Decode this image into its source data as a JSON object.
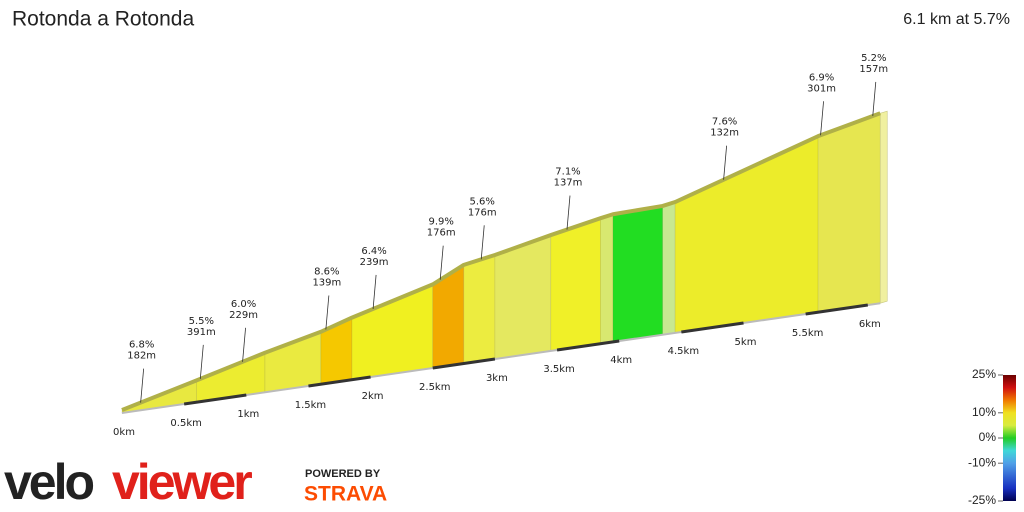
{
  "chart_data": {
    "type": "elevation-profile",
    "title": "Rotonda a Rotonda",
    "subtitle": "6.1 km at 5.7%",
    "distance": [
      0,
      0.6,
      1.15,
      1.6,
      1.85,
      2.5,
      2.75,
      3.0,
      3.45,
      3.85,
      3.95,
      4.35,
      4.45,
      5.6,
      6.1
    ],
    "elevation": [
      0,
      35,
      68,
      92,
      110,
      150,
      178,
      188,
      210,
      228,
      232,
      234,
      238,
      322,
      348
    ],
    "segment_colors": [
      "#e8e840",
      "#ecec30",
      "#eaea40",
      "#f5c800",
      "#f0f020",
      "#f2a900",
      "#ecec40",
      "#e4e860",
      "#f0f028",
      "#d8e870",
      "#22dd22",
      "#c8e890",
      "#ecec2a",
      "#e6e650"
    ],
    "xticks": [
      {
        "value": 0,
        "label": "0km"
      },
      {
        "value": 0.5,
        "label": "0.5km"
      },
      {
        "value": 1,
        "label": "1km"
      },
      {
        "value": 1.5,
        "label": "1.5km"
      },
      {
        "value": 2,
        "label": "2km"
      },
      {
        "value": 2.5,
        "label": "2.5km"
      },
      {
        "value": 3,
        "label": "3km"
      },
      {
        "value": 3.5,
        "label": "3.5km"
      },
      {
        "value": 4,
        "label": "4km"
      },
      {
        "value": 4.5,
        "label": "4.5km"
      },
      {
        "value": 5,
        "label": "5km"
      },
      {
        "value": 5.5,
        "label": "5.5km"
      },
      {
        "value": 6,
        "label": "6km"
      }
    ],
    "annotations": [
      {
        "x": 0.15,
        "grade": "6.8%",
        "length": "182m"
      },
      {
        "x": 0.63,
        "grade": "5.5%",
        "length": "391m"
      },
      {
        "x": 0.97,
        "grade": "6.0%",
        "length": "229m"
      },
      {
        "x": 1.64,
        "grade": "8.6%",
        "length": "139m"
      },
      {
        "x": 2.02,
        "grade": "6.4%",
        "length": "239m"
      },
      {
        "x": 2.56,
        "grade": "9.9%",
        "length": "176m"
      },
      {
        "x": 2.89,
        "grade": "5.6%",
        "length": "176m"
      },
      {
        "x": 3.58,
        "grade": "7.1%",
        "length": "137m"
      },
      {
        "x": 4.84,
        "grade": "7.6%",
        "length": "132m"
      },
      {
        "x": 5.62,
        "grade": "6.9%",
        "length": "301m"
      },
      {
        "x": 6.04,
        "grade": "5.2%",
        "length": "157m"
      }
    ],
    "color_scale": {
      "lim": [
        -25,
        25
      ],
      "ticks": [
        {
          "value": 25,
          "label": "25%"
        },
        {
          "value": 10,
          "label": "10%"
        },
        {
          "value": 0,
          "label": "0%"
        },
        {
          "value": -10,
          "label": "-10%"
        },
        {
          "value": -25,
          "label": "-25%"
        }
      ],
      "stops": [
        {
          "value": 25,
          "color": "#6b0000"
        },
        {
          "value": 20,
          "color": "#d01010"
        },
        {
          "value": 15,
          "color": "#f07800"
        },
        {
          "value": 10,
          "color": "#f0e020"
        },
        {
          "value": 5,
          "color": "#d8ec40"
        },
        {
          "value": 0,
          "color": "#22cc22"
        },
        {
          "value": -5,
          "color": "#40d8d8"
        },
        {
          "value": -10,
          "color": "#50a0e8"
        },
        {
          "value": -20,
          "color": "#1830c0"
        },
        {
          "value": -25,
          "color": "#000050"
        }
      ]
    },
    "branding": {
      "logo_a": "velo",
      "logo_b": "viewer",
      "powered_by": "POWERED BY",
      "strava": "STRAVA"
    }
  }
}
